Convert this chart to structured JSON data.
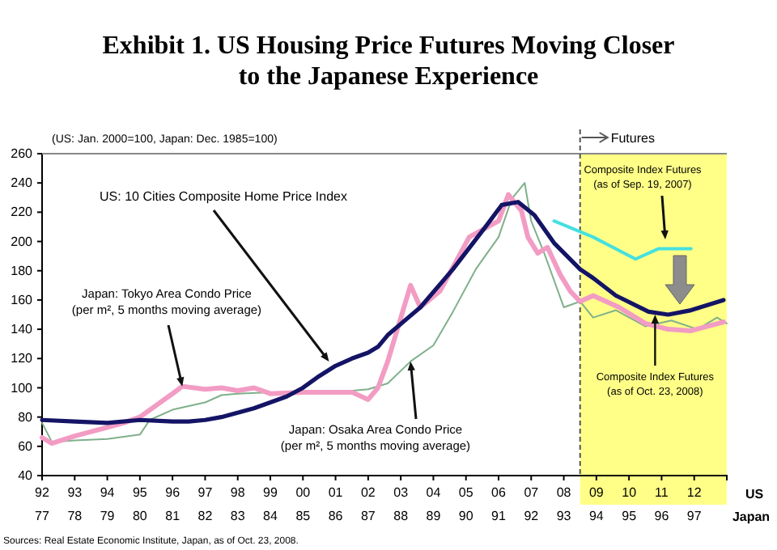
{
  "chart_data": {
    "type": "line",
    "title": "Exhibit 1.  US Housing Price Futures Moving Closer\nto the Japanese Experience",
    "subtitle": "(US: Jan. 2000=100, Japan: Dec. 1985=100)",
    "xlabel": "US",
    "x2label": "Japan",
    "xlim": [
      1992,
      2013
    ],
    "xticks": [
      {
        "value": 1992,
        "label": "92"
      },
      {
        "value": 1993,
        "label": "93"
      },
      {
        "value": 1994,
        "label": "94"
      },
      {
        "value": 1995,
        "label": "95"
      },
      {
        "value": 1996,
        "label": "96"
      },
      {
        "value": 1997,
        "label": "97"
      },
      {
        "value": 1998,
        "label": "98"
      },
      {
        "value": 1999,
        "label": "99"
      },
      {
        "value": 2000,
        "label": "00"
      },
      {
        "value": 2001,
        "label": "01"
      },
      {
        "value": 2002,
        "label": "02"
      },
      {
        "value": 2003,
        "label": "03"
      },
      {
        "value": 2004,
        "label": "04"
      },
      {
        "value": 2005,
        "label": "05"
      },
      {
        "value": 2006,
        "label": "06"
      },
      {
        "value": 2007,
        "label": "07"
      },
      {
        "value": 2008,
        "label": "08"
      },
      {
        "value": 2009,
        "label": "09"
      },
      {
        "value": 2010,
        "label": "10"
      },
      {
        "value": 2011,
        "label": "11"
      },
      {
        "value": 2012,
        "label": "12"
      }
    ],
    "x2lim": [
      1977,
      1998
    ],
    "x2ticks": [
      {
        "value": 1977,
        "label": "77"
      },
      {
        "value": 1978,
        "label": "78"
      },
      {
        "value": 1979,
        "label": "79"
      },
      {
        "value": 1980,
        "label": "80"
      },
      {
        "value": 1981,
        "label": "81"
      },
      {
        "value": 1982,
        "label": "82"
      },
      {
        "value": 1983,
        "label": "83"
      },
      {
        "value": 1984,
        "label": "84"
      },
      {
        "value": 1985,
        "label": "85"
      },
      {
        "value": 1986,
        "label": "86"
      },
      {
        "value": 1987,
        "label": "87"
      },
      {
        "value": 1988,
        "label": "88"
      },
      {
        "value": 1989,
        "label": "89"
      },
      {
        "value": 1990,
        "label": "90"
      },
      {
        "value": 1991,
        "label": "91"
      },
      {
        "value": 1992,
        "label": "92"
      },
      {
        "value": 1993,
        "label": "93"
      },
      {
        "value": 1994,
        "label": "94"
      },
      {
        "value": 1995,
        "label": "95"
      },
      {
        "value": 1996,
        "label": "96"
      },
      {
        "value": 1997,
        "label": "97"
      }
    ],
    "ylim": [
      40,
      260
    ],
    "yticks": [
      40,
      60,
      80,
      100,
      120,
      140,
      160,
      180,
      200,
      220,
      240,
      260
    ],
    "grid": false,
    "bands": [
      {
        "axis": "x",
        "from": 2008.5,
        "to": 2013,
        "color": "#ffff88"
      }
    ],
    "ref_lines": [
      {
        "axis": "x",
        "value": 2008.5,
        "label": "Futures",
        "line_style": "dashed",
        "color": "#555555"
      }
    ],
    "series": [
      {
        "color": "#7fb08a",
        "x": [
          1992,
          1992.3,
          1993,
          1994,
          1995,
          1995.3,
          1996,
          1997,
          1997.5,
          1998,
          1999,
          2000,
          2001,
          2002,
          2002.6,
          2003.3,
          2004,
          2004.6,
          2005.3,
          2006,
          2006.4,
          2006.8,
          2007,
          2007.4,
          2008,
          2008.5,
          2008.9,
          2009.6,
          2010.5,
          2011.3,
          2012.1,
          2012.7,
          2013
        ],
        "values": [
          76,
          63,
          64,
          65,
          68,
          78,
          85,
          90,
          95,
          96,
          97,
          97,
          97,
          99,
          103,
          118,
          129,
          152,
          181,
          203,
          229,
          240,
          214,
          192,
          155,
          159,
          148,
          153,
          142,
          146,
          140,
          148,
          144
        ]
      },
      {
        "color": "#f29cc4",
        "x": [
          1992,
          1992.3,
          1993,
          1994,
          1994.5,
          1995,
          1995.5,
          1996,
          1996.3,
          1997,
          1997.5,
          1998,
          1998.5,
          1999,
          2000,
          2001,
          2001.5,
          2002,
          2002.3,
          2002.6,
          2003.3,
          2003.6,
          2004.2,
          2005.1,
          2006,
          2006.3,
          2006.7,
          2006.9,
          2007.2,
          2007.5,
          2007.9,
          2008.2,
          2008.5,
          2008.9,
          2009.7,
          2010.5,
          2011.2,
          2011.9,
          2012.9
        ],
        "values": [
          66,
          62,
          67,
          73,
          76,
          80,
          88,
          96,
          101,
          99,
          100,
          98,
          100,
          96,
          97,
          97,
          97,
          92,
          100,
          118,
          170,
          155,
          166,
          203,
          214,
          232,
          221,
          203,
          192,
          196,
          177,
          166,
          159,
          163,
          155,
          144,
          140,
          139,
          145
        ]
      },
      {
        "color": "#141466",
        "x": [
          1992,
          1993,
          1994,
          1995,
          1996,
          1996.5,
          1997,
          1997.5,
          1998,
          1998.5,
          1999,
          1999.5,
          2000,
          2000.5,
          2001,
          2001.5,
          2002,
          2002.3,
          2002.6,
          2003.6,
          2004.6,
          2005.6,
          2006.1,
          2006.6,
          2007.1,
          2007.7,
          2008.5,
          2008.9,
          2009.6,
          2010.6,
          2011.2,
          2011.9,
          2012.9
        ],
        "values": [
          78,
          77,
          76,
          78,
          77,
          77,
          78,
          80,
          83,
          86,
          90,
          94,
          100,
          108,
          115,
          120,
          124,
          128,
          136,
          155,
          181,
          210,
          225,
          227,
          218,
          199,
          181,
          175,
          163,
          152,
          150,
          153,
          160
        ]
      },
      {
        "name": "Composite Index Futures (as of Sep. 19, 2007)",
        "color": "#45e0e0",
        "x": [
          2007.7,
          2008.9,
          2010.2,
          2010.9,
          2011.9
        ],
        "values": [
          214,
          203,
          188,
          195,
          195
        ]
      }
    ],
    "annotations": [
      {
        "text": "US: 10 Cities Composite Home Price Index",
        "x": 2000.8,
        "y": 118
      },
      {
        "text": "Japan: Tokyo Area Condo Price (per m², 5 months moving average)",
        "x": 1996.3,
        "y": 101
      },
      {
        "text": "Japan: Osaka Area Condo Price (per m², 5 months moving average)",
        "x": 2003.3,
        "y": 118
      },
      {
        "text": "Composite Index Futures (as of Oct. 23, 2008)",
        "x": 2010.8,
        "y": 150
      },
      "Sources: Real Estate Economic Institute, Japan, as of Oct. 23, 2008."
    ]
  }
}
